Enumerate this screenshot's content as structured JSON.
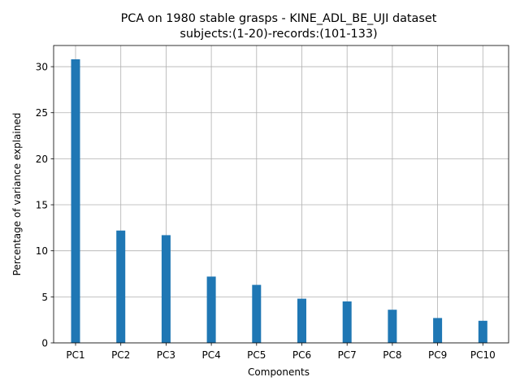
{
  "chart_data": {
    "type": "bar",
    "title": "PCA on 1980 stable grasps - KINE_ADL_BE_UJI dataset",
    "subtitle": "subjects:(1-20)-records:(101-133)",
    "xlabel": "Components",
    "ylabel": "Percentage of variance explained",
    "categories": [
      "PC1",
      "PC2",
      "PC3",
      "PC4",
      "PC5",
      "PC6",
      "PC7",
      "PC8",
      "PC9",
      "PC10"
    ],
    "values": [
      30.8,
      12.2,
      11.7,
      7.2,
      6.3,
      4.8,
      4.5,
      3.6,
      2.7,
      2.4
    ],
    "ylim": [
      0,
      32.3
    ],
    "yticks": [
      0,
      5,
      10,
      15,
      20,
      25,
      30
    ],
    "grid": true,
    "bar_color": "#1f77b4"
  }
}
